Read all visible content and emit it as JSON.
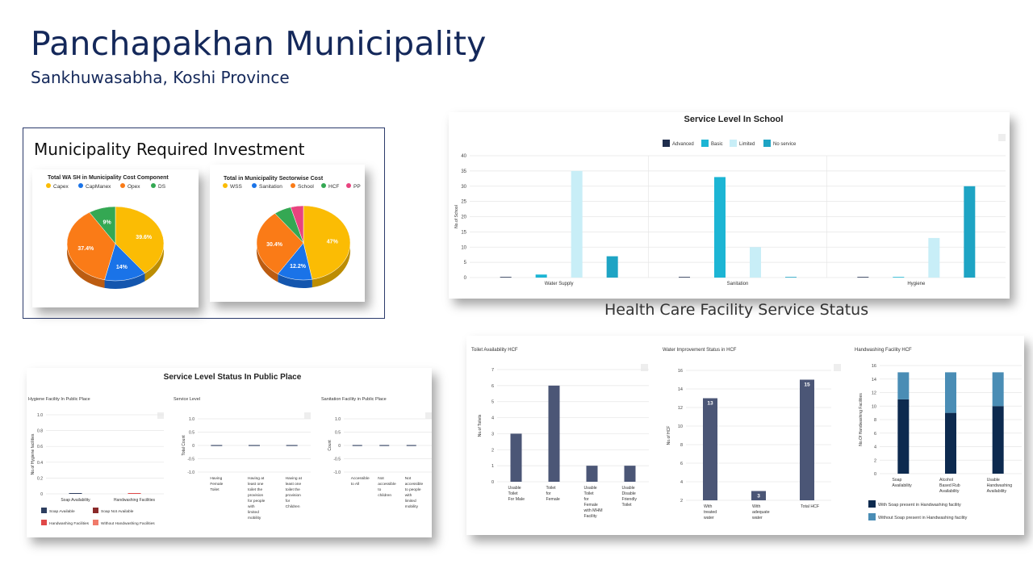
{
  "header": {
    "title": "Panchapakhan Municipality",
    "subtitle": "Sankhuwasabha, Koshi Province"
  },
  "investment": {
    "title": "Municipality Required Investment",
    "pie1": {
      "title": "Total WA SH in Municipality Cost Component",
      "legend": [
        {
          "label": "Capex",
          "color": "#fbbc04"
        },
        {
          "label": "CapManex",
          "color": "#1a73e8"
        },
        {
          "label": "Opex",
          "color": "#fa7b17"
        },
        {
          "label": "DS",
          "color": "#34a853"
        }
      ],
      "slices": [
        {
          "label": "39.6%",
          "value": 39.6,
          "color": "#fbbc04"
        },
        {
          "label": "14%",
          "value": 14,
          "color": "#1a73e8"
        },
        {
          "label": "37.4%",
          "value": 37.4,
          "color": "#fa7b17"
        },
        {
          "label": "9%",
          "value": 9,
          "color": "#34a853"
        }
      ]
    },
    "pie2": {
      "title": "Total in Municipality Sectorwise Cost",
      "legend": [
        {
          "label": "WSS",
          "color": "#fbbc04"
        },
        {
          "label": "Sanitation",
          "color": "#1a73e8"
        },
        {
          "label": "School",
          "color": "#fa7b17"
        },
        {
          "label": "HCF",
          "color": "#34a853"
        },
        {
          "label": "PP",
          "color": "#e8437f"
        }
      ],
      "slices": [
        {
          "label": "47%",
          "value": 47,
          "color": "#fbbc04"
        },
        {
          "label": "12.2%",
          "value": 12.2,
          "color": "#1a73e8"
        },
        {
          "label": "30.4%",
          "value": 30.4,
          "color": "#fa7b17"
        },
        {
          "label": "",
          "value": 6,
          "color": "#34a853"
        },
        {
          "label": "",
          "value": 4.4,
          "color": "#e8437f"
        }
      ]
    }
  },
  "chart_data": [
    {
      "type": "bar",
      "title": "Service Level In School",
      "ylabel": "No.of School",
      "categories": [
        "Water Supply",
        "Sanitation",
        "Hygiene"
      ],
      "ylim": [
        0,
        40
      ],
      "yticks": [
        "0",
        "5",
        "10",
        "15",
        "20",
        "25",
        "30",
        "35",
        "40"
      ],
      "legend_position": "top",
      "series": [
        {
          "name": "Advanced",
          "color": "#1f2d4d",
          "values": [
            0,
            0,
            0
          ]
        },
        {
          "name": "Basic",
          "color": "#1cb5d4",
          "values": [
            1,
            33,
            0
          ]
        },
        {
          "name": "Limited",
          "color": "#c8eef7",
          "values": [
            35,
            10,
            13
          ]
        },
        {
          "name": "No service",
          "color": "#1ea4c4",
          "values": [
            7,
            0,
            30
          ]
        }
      ]
    },
    {
      "type": "bar",
      "title": "Toilet Availability HCF",
      "ylabel": "No.of Toilets",
      "categories": [
        "Usable Toilet For Male",
        "Toilet for Female",
        "Usable Toilet for Female with MHM Facility",
        "Usable Disable Friendly Toilet"
      ],
      "ylim": [
        0,
        7
      ],
      "yticks": [
        "0",
        "1",
        "2",
        "3",
        "4",
        "5",
        "6",
        "7"
      ],
      "values": [
        3,
        6,
        1,
        1
      ]
    },
    {
      "type": "bar",
      "title": "Water Improvement Status in HCF",
      "ylabel": "No.of HCF",
      "categories": [
        "With treated water",
        "With adequate water",
        "Total HCF"
      ],
      "ylim": [
        2,
        16
      ],
      "yticks": [
        "2",
        "4",
        "6",
        "8",
        "10",
        "12",
        "14",
        "16"
      ],
      "values": [
        13,
        3,
        15
      ],
      "data_labels": [
        "13",
        "3",
        "15"
      ]
    },
    {
      "type": "bar",
      "stacked": true,
      "title": "Handwashing Facility HCF",
      "ylabel": "No.Of Handwashing Facilities",
      "categories": [
        "Soap Availability",
        "Alcohol Based Rub Availability",
        "Usable Handwashing Availability"
      ],
      "ylim": [
        0,
        16
      ],
      "yticks": [
        "0",
        "2",
        "4",
        "6",
        "8",
        "10",
        "12",
        "14",
        "16"
      ],
      "series": [
        {
          "name": "With Soap present in Handwashing facility",
          "color": "#0d2a4f",
          "values": [
            11,
            9,
            10
          ]
        },
        {
          "name": "Without Soap present in Handwashing facility",
          "color": "#4a8db5",
          "values": [
            4,
            6,
            5
          ]
        }
      ]
    },
    {
      "type": "bar",
      "title": "Hygiene Facility In Public Place",
      "ylabel": "No.of Hygiene facilities",
      "categories": [
        "Soap Availability",
        "Handwashing Facilities"
      ],
      "ylim": [
        0,
        1
      ],
      "yticks": [
        "0",
        "0.2",
        "0.4",
        "0.6",
        "0.8",
        "1.0"
      ],
      "series": [
        {
          "name": "Soap Available",
          "color": "#2d3e5f",
          "values": [
            0,
            0
          ]
        },
        {
          "name": "Soap Not Available",
          "color": "#8b2a2a",
          "values": [
            0,
            0
          ]
        },
        {
          "name": "Handwashing Facilities",
          "color": "#e04848",
          "values": [
            0,
            0
          ]
        },
        {
          "name": "Without Handwashing Facilities",
          "color": "#f07a6a",
          "values": [
            0,
            0
          ]
        }
      ]
    },
    {
      "type": "bar",
      "title": "Service Level",
      "ylabel": "Total Count",
      "categories": [
        "Having Female Toilet",
        "Having at least one toilet the provision for people with limited mobility",
        "Having at least one toilet the provision for Children"
      ],
      "ylim": [
        -1,
        1
      ],
      "yticks": [
        "-1.0",
        "-0.5",
        "0",
        "0.5",
        "1.0"
      ],
      "values": [
        0,
        0,
        0
      ]
    },
    {
      "type": "bar",
      "title": "Sanitation Facility in Public Place",
      "ylabel": "Count",
      "categories": [
        "Accessible to All",
        "Not accessible to children",
        "Not accessible to people with limited mobility",
        "Not accessible to children and people with limited mobility"
      ],
      "ylim": [
        -1,
        1
      ],
      "yticks": [
        "-1.0",
        "-0.5",
        "0",
        "0.5",
        "1.0"
      ],
      "values": [
        0,
        0,
        0,
        0
      ]
    }
  ],
  "public_place": {
    "title": "Service Level Status In Public Place"
  },
  "hcf": {
    "heading": "Health Care Facility Service Status"
  }
}
